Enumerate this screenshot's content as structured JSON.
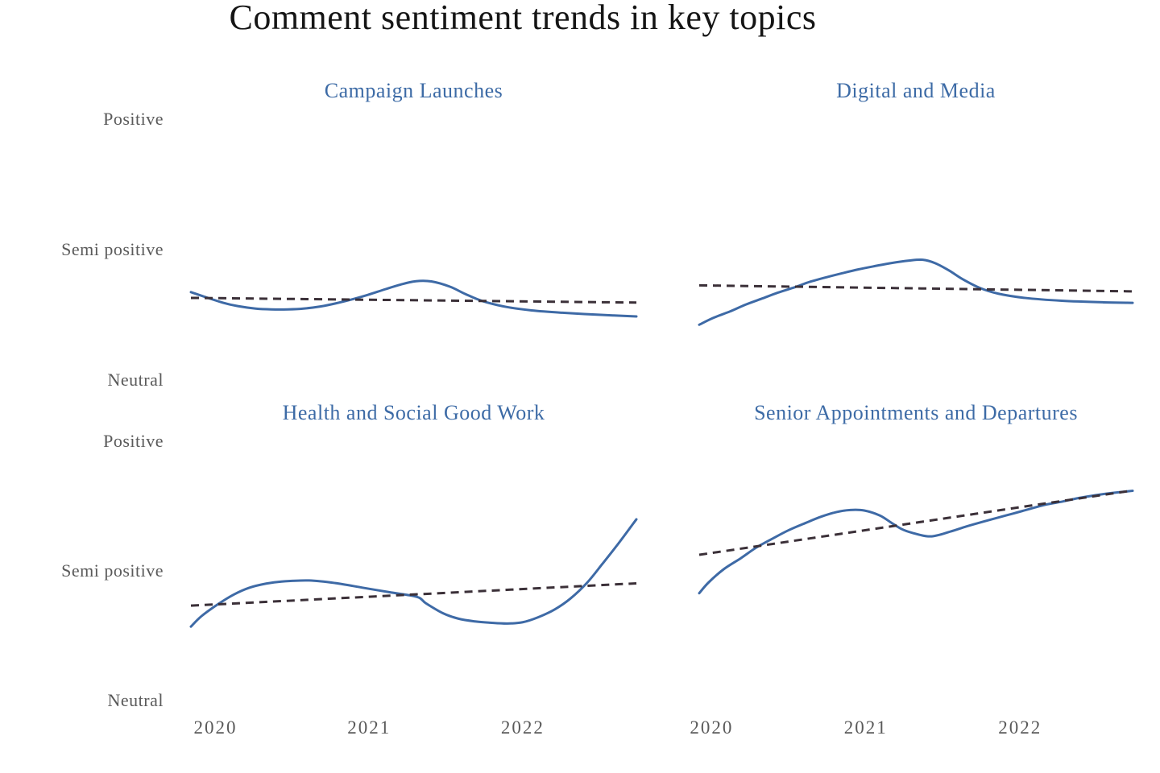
{
  "title": "Comment sentiment trends in key topics",
  "colors": {
    "line": "#3e6aa6",
    "trend": "#3b3038",
    "panel_title": "#3d6ba6",
    "axis_label": "#5a5a5a",
    "main_title": "#151515",
    "background": "#ffffff"
  },
  "axis": {
    "y_categories": [
      "Positive",
      "Semi positive",
      "Neutral"
    ],
    "y_values": [
      1,
      0.5,
      0
    ],
    "x_tick_labels": [
      "2020",
      "2021",
      "2022"
    ],
    "x_tick_years": [
      2020,
      2021,
      2022
    ]
  },
  "chart_data": [
    {
      "type": "line",
      "title": "Campaign Launches",
      "position": "top-left",
      "xlim": [
        2019.84,
        2022.73
      ],
      "ylim": [
        0,
        1
      ],
      "y_scale_note": "0 = Neutral, 0.5 = Semi positive, 1 = Positive",
      "grid": false,
      "legend": "none",
      "series": [
        {
          "name": "smoothed sentiment",
          "style": "solid",
          "x": [
            2019.84,
            2020.05,
            2020.16,
            2020.26,
            2020.36,
            2020.47,
            2020.57,
            2020.68,
            2020.78,
            2020.89,
            2020.99,
            2021.1,
            2021.2,
            2021.3,
            2021.4,
            2021.52,
            2021.62,
            2021.73,
            2021.88,
            2022.05,
            2022.25,
            2022.5,
            2022.73
          ],
          "y": [
            0.337,
            0.296,
            0.282,
            0.274,
            0.271,
            0.271,
            0.274,
            0.282,
            0.294,
            0.31,
            0.327,
            0.348,
            0.366,
            0.379,
            0.378,
            0.358,
            0.33,
            0.303,
            0.281,
            0.267,
            0.258,
            0.25,
            0.244
          ]
        },
        {
          "name": "linear trend",
          "style": "dashed",
          "x": [
            2019.84,
            2022.73
          ],
          "y": [
            0.315,
            0.297
          ]
        }
      ]
    },
    {
      "type": "line",
      "title": "Digital and Media",
      "position": "top-right",
      "xlim": [
        2019.92,
        2022.73
      ],
      "ylim": [
        0,
        1
      ],
      "y_scale_note": "0 = Neutral, 0.5 = Semi positive, 1 = Positive",
      "grid": false,
      "legend": "none",
      "series": [
        {
          "name": "smoothed sentiment",
          "style": "solid",
          "x": [
            2019.92,
            2020.01,
            2020.12,
            2020.22,
            2020.33,
            2020.43,
            2020.54,
            2020.64,
            2020.75,
            2020.85,
            2020.95,
            2021.06,
            2021.16,
            2021.28,
            2021.37,
            2021.45,
            2021.54,
            2021.63,
            2021.74,
            2021.86,
            2022.03,
            2022.27,
            2022.54,
            2022.73
          ],
          "y": [
            0.212,
            0.238,
            0.263,
            0.289,
            0.313,
            0.335,
            0.356,
            0.377,
            0.395,
            0.41,
            0.424,
            0.437,
            0.448,
            0.458,
            0.461,
            0.448,
            0.42,
            0.386,
            0.353,
            0.331,
            0.315,
            0.304,
            0.298,
            0.296
          ]
        },
        {
          "name": "linear trend",
          "style": "dashed",
          "x": [
            2019.92,
            2022.73
          ],
          "y": [
            0.363,
            0.34
          ]
        }
      ]
    },
    {
      "type": "line",
      "title": "Health and Social Good Work",
      "position": "bottom-left",
      "xlim": [
        2019.84,
        2022.74
      ],
      "ylim": [
        0,
        1
      ],
      "y_scale_note": "0 = Neutral, 0.5 = Semi positive, 1 = Positive",
      "grid": false,
      "legend": "none",
      "series": [
        {
          "name": "smoothed sentiment",
          "style": "solid",
          "x": [
            2019.84,
            2019.91,
            2020.02,
            2020.12,
            2020.22,
            2020.33,
            2020.43,
            2020.61,
            2020.78,
            2020.96,
            2021.13,
            2021.31,
            2021.37,
            2021.48,
            2021.58,
            2021.69,
            2021.79,
            2021.9,
            2022.0,
            2022.1,
            2022.21,
            2022.31,
            2022.42,
            2022.52,
            2022.63,
            2022.74
          ],
          "y": [
            0.285,
            0.326,
            0.373,
            0.409,
            0.435,
            0.451,
            0.459,
            0.463,
            0.453,
            0.435,
            0.418,
            0.4,
            0.375,
            0.337,
            0.316,
            0.305,
            0.3,
            0.297,
            0.302,
            0.321,
            0.352,
            0.393,
            0.455,
            0.528,
            0.611,
            0.699
          ]
        },
        {
          "name": "linear trend",
          "style": "dashed",
          "x": [
            2019.84,
            2022.74
          ],
          "y": [
            0.366,
            0.452
          ]
        }
      ]
    },
    {
      "type": "line",
      "title": "Senior Appointments and Departures",
      "position": "bottom-right",
      "xlim": [
        2019.92,
        2022.73
      ],
      "ylim": [
        0,
        1
      ],
      "y_scale_note": "0 = Neutral, 0.5 = Semi positive, 1 = Positive",
      "grid": false,
      "legend": "none",
      "series": [
        {
          "name": "smoothed sentiment",
          "style": "solid",
          "x": [
            2019.92,
            2019.98,
            2020.08,
            2020.19,
            2020.29,
            2020.4,
            2020.5,
            2020.61,
            2020.71,
            2020.81,
            2020.9,
            2020.99,
            2021.09,
            2021.16,
            2021.23,
            2021.3,
            2021.42,
            2021.55,
            2021.65,
            2021.75,
            2021.86,
            2021.96,
            2022.07,
            2022.17,
            2022.28,
            2022.38,
            2022.49,
            2022.59,
            2022.73
          ],
          "y": [
            0.414,
            0.455,
            0.507,
            0.549,
            0.59,
            0.626,
            0.657,
            0.685,
            0.709,
            0.727,
            0.735,
            0.733,
            0.714,
            0.688,
            0.662,
            0.647,
            0.633,
            0.652,
            0.671,
            0.688,
            0.706,
            0.722,
            0.74,
            0.756,
            0.768,
            0.781,
            0.792,
            0.8,
            0.809
          ]
        },
        {
          "name": "linear trend",
          "style": "dashed",
          "x": [
            2019.92,
            2022.73
          ],
          "y": [
            0.562,
            0.81
          ]
        }
      ]
    }
  ]
}
